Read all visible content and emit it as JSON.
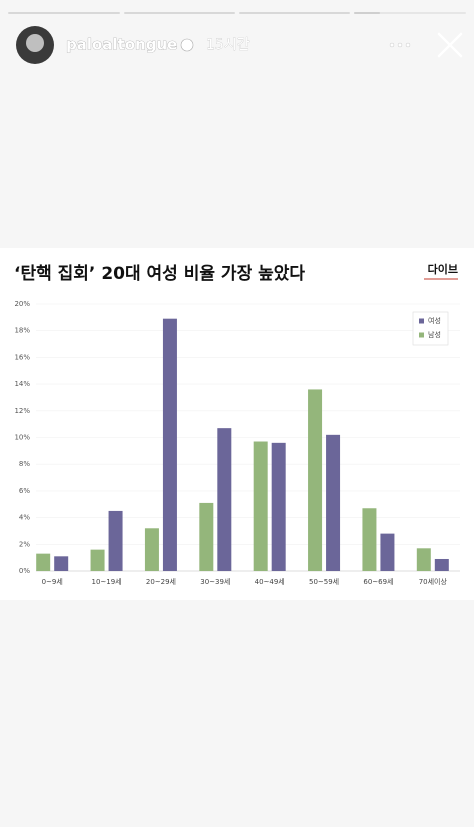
{
  "story": {
    "username": "paloaltongue",
    "time": "15시간"
  },
  "chart_data": {
    "type": "bar",
    "title": "‘탄핵 집회’ 20대 여성 비율 가장 높았다",
    "logo": "다이브",
    "categories": [
      "0~9세",
      "10~19세",
      "20~29세",
      "30~39세",
      "40~49세",
      "50~59세",
      "60~69세",
      "70세이상"
    ],
    "series": [
      {
        "name": "남성",
        "color": "#94b67b",
        "values": [
          1.3,
          1.6,
          3.2,
          5.1,
          9.7,
          13.6,
          4.7,
          1.7
        ]
      },
      {
        "name": "여성",
        "color": "#6b6699",
        "values": [
          1.1,
          4.5,
          18.9,
          10.7,
          9.6,
          10.2,
          2.8,
          0.9
        ]
      }
    ],
    "legend_order": [
      "여성",
      "남성"
    ],
    "legend": "upper right",
    "ylim": [
      0,
      20
    ],
    "yticks": [
      {
        "value": 0,
        "label": "0%"
      },
      {
        "value": 2,
        "label": "2%"
      },
      {
        "value": 4,
        "label": "4%"
      },
      {
        "value": 6,
        "label": "6%"
      },
      {
        "value": 8,
        "label": "8%"
      },
      {
        "value": 10,
        "label": "10%"
      },
      {
        "value": 12,
        "label": "12%"
      },
      {
        "value": 14,
        "label": "14%"
      },
      {
        "value": 16,
        "label": "16%"
      },
      {
        "value": 18,
        "label": "18%"
      },
      {
        "value": 20,
        "label": "20%"
      }
    ],
    "grid": true
  }
}
